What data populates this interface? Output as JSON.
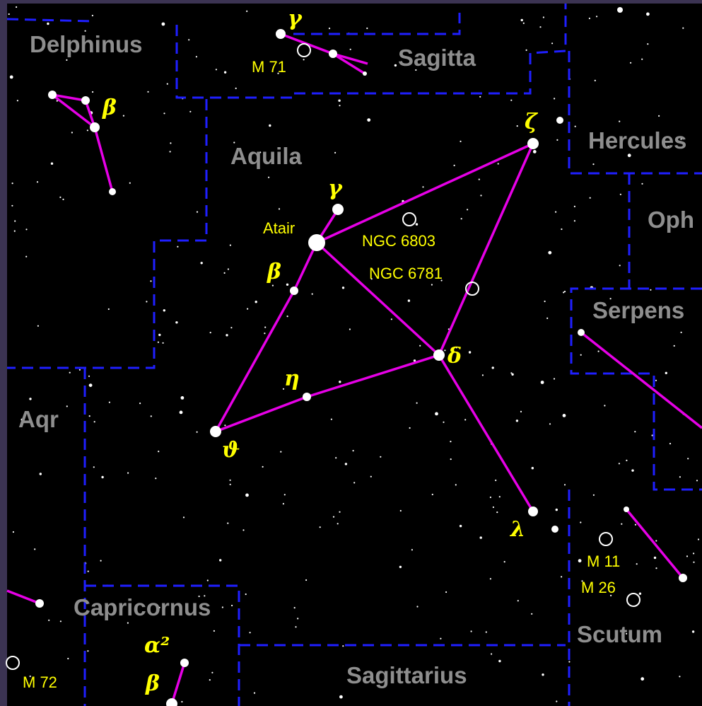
{
  "constellations": [
    "Delphinus",
    "Sagitta",
    "Aquila",
    "Hercules",
    "Oph",
    "Serpens",
    "Aqr",
    "Capricornus",
    "Scutum",
    "Sagittarius"
  ],
  "stars": [
    "Atair",
    "γ",
    "β",
    "ζ",
    "γ",
    "β",
    "δ",
    "η",
    "ϑ",
    "λ",
    "α²",
    "β"
  ],
  "objects": [
    "M 71",
    "NGC 6803",
    "NGC 6781",
    "M 11",
    "M 26",
    "M 72"
  ]
}
